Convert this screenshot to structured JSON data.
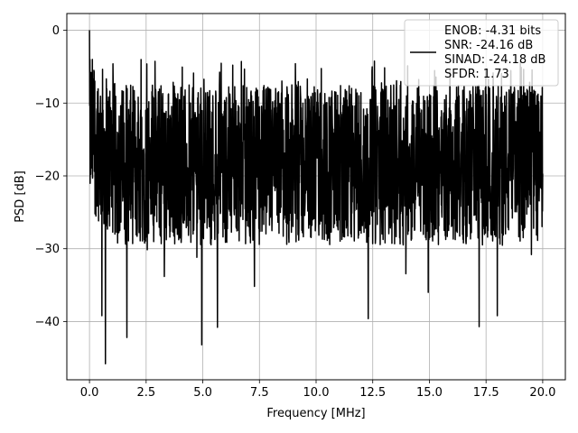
{
  "chart_data": {
    "type": "line",
    "title": "",
    "xlabel": "Frequency [MHz]",
    "ylabel": "PSD [dB]",
    "xlim": [
      -1.0,
      21.0
    ],
    "ylim": [
      -48.0,
      2.3
    ],
    "xticks": [
      0.0,
      2.5,
      5.0,
      7.5,
      10.0,
      12.5,
      15.0,
      17.5,
      20.0
    ],
    "xtick_labels": [
      "0.0",
      "2.5",
      "5.0",
      "7.5",
      "10.0",
      "12.5",
      "15.0",
      "17.5",
      "20.0"
    ],
    "yticks": [
      0,
      -10,
      -20,
      -30,
      -40
    ],
    "ytick_labels": [
      "0",
      "−10",
      "−20",
      "−30",
      "−40"
    ],
    "grid": true,
    "legend_position": "top-right",
    "legend_lines": [
      "ENOB: -4.31 bits",
      "SNR: -24.16 dB",
      "SINAD: -24.18 dB",
      "SFDR: 1.73"
    ],
    "line_color": "#000000",
    "series": [
      {
        "x_range": [
          0.0,
          20.0
        ],
        "noise_floor_db": -18.5,
        "peak_db": 0.0,
        "points_approx": 2048,
        "notable_points": [
          {
            "x": 0.0,
            "y": 0.0
          },
          {
            "x": 0.55,
            "y": -39.2
          },
          {
            "x": 0.7,
            "y": -45.8
          },
          {
            "x": 1.65,
            "y": -42.2
          },
          {
            "x": 4.95,
            "y": -43.2
          },
          {
            "x": 5.65,
            "y": -40.8
          },
          {
            "x": 12.3,
            "y": -39.6
          },
          {
            "x": 17.2,
            "y": -40.7
          },
          {
            "x": 18.0,
            "y": -39.2
          }
        ]
      }
    ]
  }
}
